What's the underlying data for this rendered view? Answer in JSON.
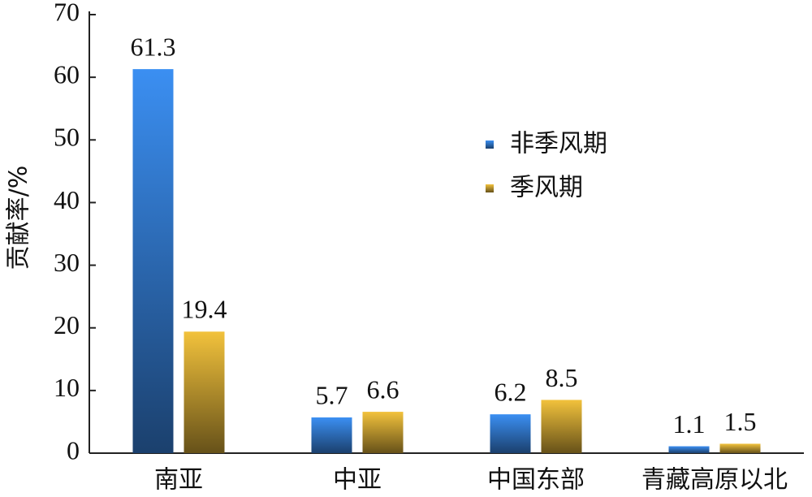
{
  "chart_data": {
    "type": "bar",
    "y_label": "贡献率/%",
    "categories": [
      "南亚",
      "中亚",
      "中国东部",
      "青藏高原以北"
    ],
    "series": [
      {
        "name": "非季风期",
        "color": "#3b8ff2",
        "values": [
          61.3,
          5.7,
          6.2,
          1.1
        ]
      },
      {
        "name": "季风期",
        "color": "#f2c23c",
        "values": [
          19.4,
          6.6,
          8.5,
          1.5
        ]
      }
    ],
    "ylim": [
      0,
      70
    ],
    "yticks": [
      0,
      10,
      20,
      30,
      40,
      50,
      60,
      70
    ],
    "legend": "center"
  }
}
